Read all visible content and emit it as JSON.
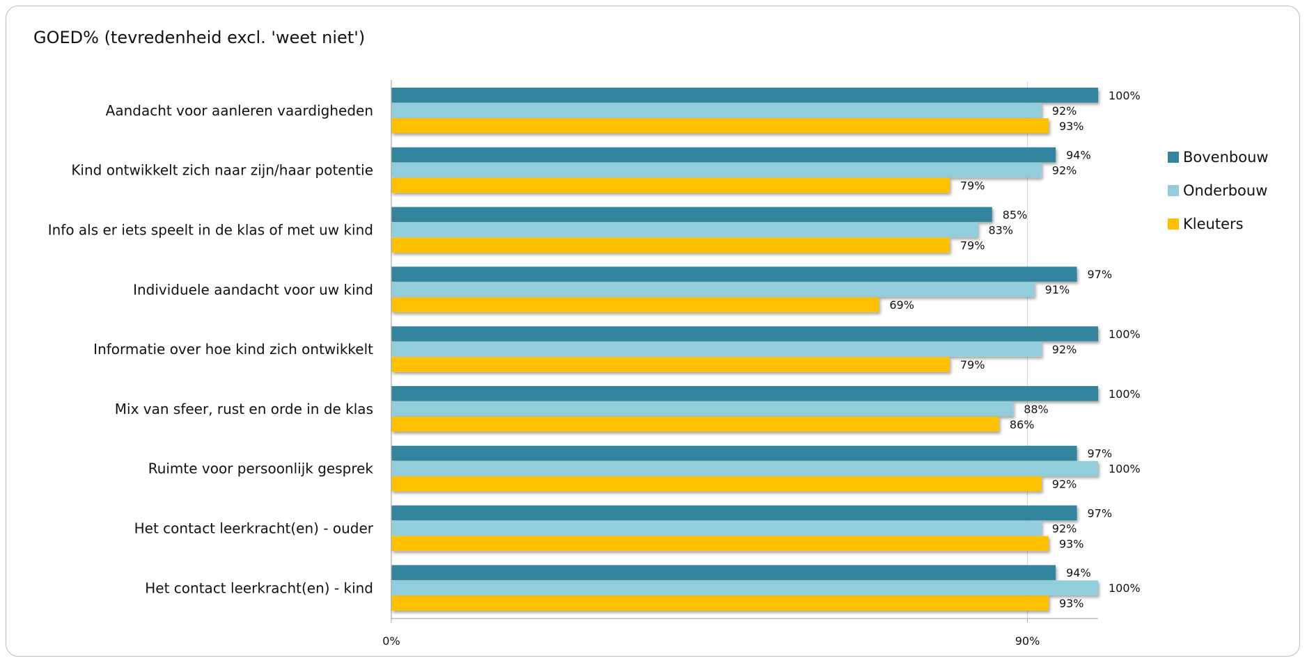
{
  "chart_data": {
    "type": "bar",
    "orientation": "horizontal",
    "title": "GOED% (tevredenheid excl. 'weet niet')",
    "xlabel": "",
    "ylabel": "",
    "categories": [
      "Aandacht voor aanleren vaardigheden",
      "Kind ontwikkelt zich naar zijn/haar potentie",
      "Info als er iets speelt in de klas of met uw kind",
      "Individuele aandacht voor uw kind",
      "Informatie over hoe kind zich ontwikkelt",
      "Mix van sfeer, rust en orde in de klas",
      "Ruimte voor persoonlijk gesprek",
      "Het contact leerkracht(en) - ouder",
      "Het contact leerkracht(en) - kind"
    ],
    "series": [
      {
        "name": "Bovenbouw",
        "color": "#31859c",
        "values": [
          100,
          94,
          85,
          97,
          100,
          100,
          97,
          97,
          94
        ],
        "labels": [
          "100%",
          "94%",
          "85%",
          "97%",
          "100%",
          "100%",
          "97%",
          "97%",
          "94%"
        ]
      },
      {
        "name": "Onderbouw",
        "color": "#92cddc",
        "values": [
          92,
          92,
          83,
          91,
          92,
          88,
          100,
          92,
          100
        ],
        "labels": [
          "92%",
          "92%",
          "83%",
          "91%",
          "92%",
          "88%",
          "100%",
          "92%",
          "100%"
        ]
      },
      {
        "name": "Kleuters",
        "color": "#ffc000",
        "values": [
          93,
          79,
          79,
          69,
          79,
          86,
          92,
          93,
          93
        ],
        "labels": [
          "93%",
          "79%",
          "79%",
          "69%",
          "79%",
          "86%",
          "92%",
          "93%",
          "93%"
        ]
      }
    ],
    "x_ticks": [
      0,
      90
    ],
    "x_tick_labels": [
      "0%",
      "90%"
    ],
    "xlim": [
      0,
      100
    ],
    "grid": true,
    "legend_position": "right"
  }
}
